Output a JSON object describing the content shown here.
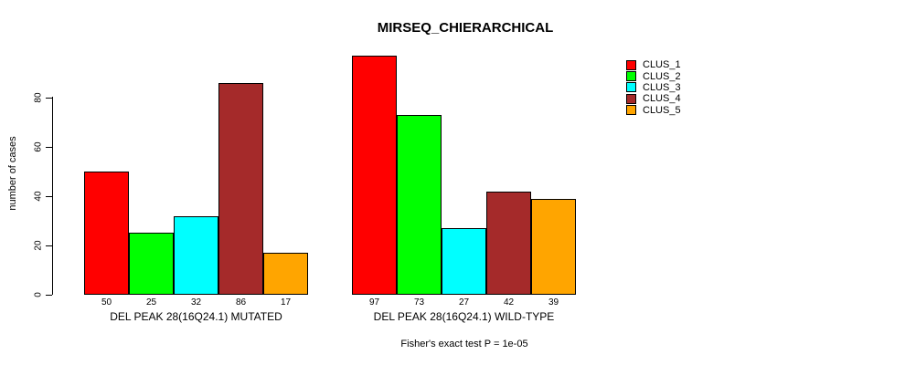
{
  "chart_data": {
    "type": "bar",
    "title": "MIRSEQ_CHIERARCHICAL",
    "ylabel": "number of cases",
    "xlabel": "",
    "ylim": [
      0,
      100
    ],
    "yticks": [
      0,
      20,
      40,
      60,
      80
    ],
    "grid": false,
    "legend_position": "right",
    "bar_border_color": "#000000",
    "categories": [
      "DEL PEAK 28(16Q24.1) MUTATED",
      "DEL PEAK 28(16Q24.1) WILD-TYPE"
    ],
    "series": [
      {
        "name": "CLUS_1",
        "color": "#FF0000",
        "values": [
          50,
          97
        ]
      },
      {
        "name": "CLUS_2",
        "color": "#00FF00",
        "values": [
          25,
          73
        ]
      },
      {
        "name": "CLUS_3",
        "color": "#00FFFF",
        "values": [
          32,
          27
        ]
      },
      {
        "name": "CLUS_4",
        "color": "#A52A2A",
        "values": [
          86,
          42
        ]
      },
      {
        "name": "CLUS_5",
        "color": "#FFA500",
        "values": [
          17,
          39
        ]
      }
    ],
    "bar_value_labels": [
      [
        "50",
        "25",
        "32",
        "86",
        "17"
      ],
      [
        "97",
        "73",
        "27",
        "42",
        "39"
      ]
    ],
    "annotation": "Fisher's exact test P = 1e-05"
  }
}
